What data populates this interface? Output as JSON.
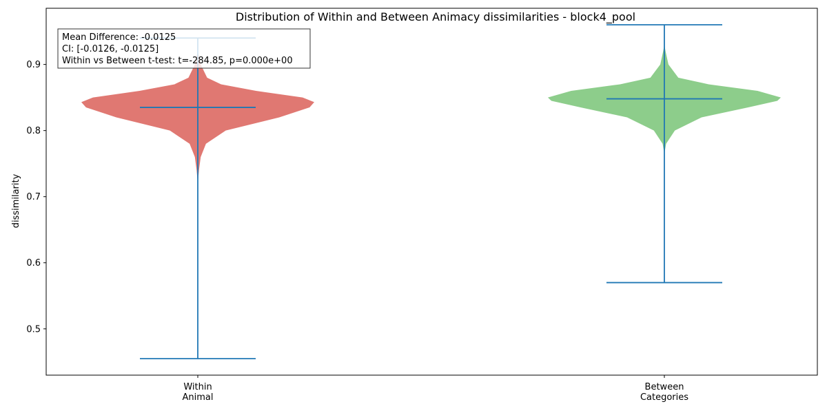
{
  "chart_data": {
    "type": "violin",
    "title": "Distribution of Within and Between Animacy dissimilarities - block4_pool",
    "xlabel": "",
    "ylabel": "dissimilarity",
    "ylim": [
      0.43,
      0.985
    ],
    "yticks": [
      0.5,
      0.6,
      0.7,
      0.8,
      0.9
    ],
    "ytick_labels": [
      "0.5",
      "0.6",
      "0.7",
      "0.8",
      "0.9"
    ],
    "grid": false,
    "annotation": [
      "Mean Difference: -0.0125",
      "CI: [-0.0126, -0.0125]",
      "Within vs Between t-test: t=-284.85, p=0.000e+00"
    ],
    "series": [
      {
        "category": [
          "Within",
          "Animal"
        ],
        "color": "#e07872",
        "line_color": "#1f77b4",
        "min": 0.455,
        "max": 0.94,
        "mean": 0.835,
        "density": [
          [
            0.72,
            0.0
          ],
          [
            0.74,
            0.01
          ],
          [
            0.76,
            0.025
          ],
          [
            0.78,
            0.07
          ],
          [
            0.8,
            0.24
          ],
          [
            0.82,
            0.7
          ],
          [
            0.835,
            0.96
          ],
          [
            0.843,
            1.0
          ],
          [
            0.85,
            0.9
          ],
          [
            0.86,
            0.5
          ],
          [
            0.87,
            0.2
          ],
          [
            0.88,
            0.08
          ],
          [
            0.9,
            0.025
          ],
          [
            0.92,
            0.0
          ]
        ]
      },
      {
        "category": [
          "Between",
          "Categories"
        ],
        "color": "#8dcd8b",
        "line_color": "#1f77b4",
        "min": 0.57,
        "max": 0.96,
        "mean": 0.848,
        "density": [
          [
            0.765,
            0.0
          ],
          [
            0.78,
            0.015
          ],
          [
            0.8,
            0.09
          ],
          [
            0.82,
            0.32
          ],
          [
            0.835,
            0.72
          ],
          [
            0.845,
            0.97
          ],
          [
            0.85,
            1.0
          ],
          [
            0.86,
            0.8
          ],
          [
            0.87,
            0.38
          ],
          [
            0.88,
            0.12
          ],
          [
            0.9,
            0.035
          ],
          [
            0.92,
            0.01
          ],
          [
            0.93,
            0.0
          ]
        ]
      }
    ]
  }
}
